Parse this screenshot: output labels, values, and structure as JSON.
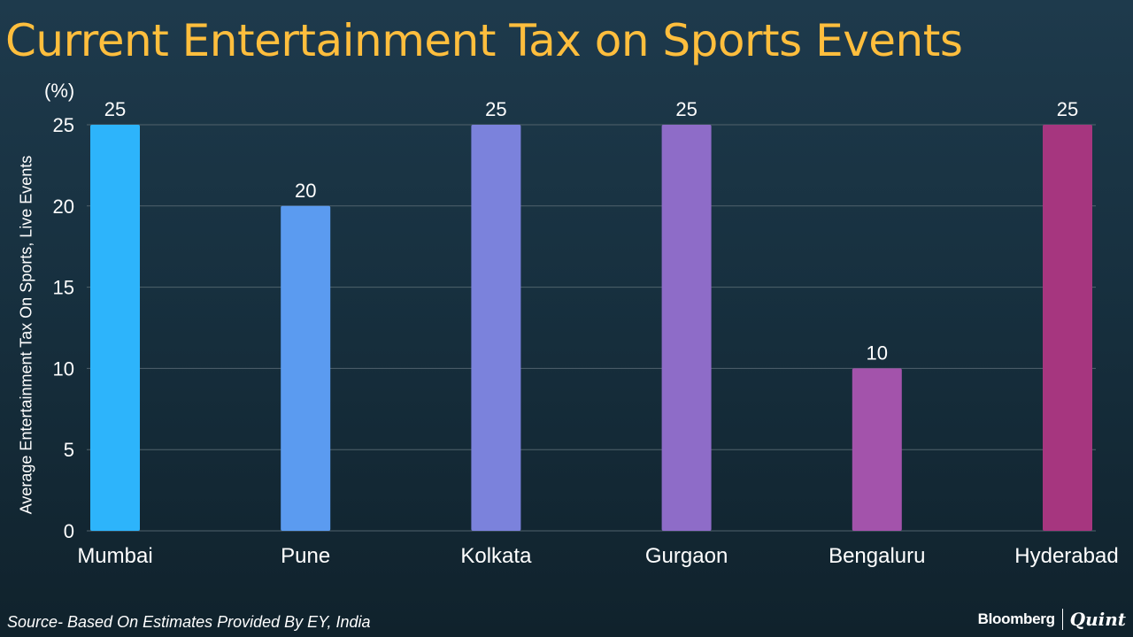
{
  "chart_data": {
    "type": "bar",
    "title": "Current Entertainment Tax on Sports Events",
    "unit_label": "(%)",
    "ylabel": "Average Entertainment Tax On Sports, Live Events",
    "xlabel": "",
    "categories": [
      "Mumbai",
      "Pune",
      "Kolkata",
      "Gurgaon",
      "Bengaluru",
      "Hyderabad"
    ],
    "values": [
      25,
      20,
      25,
      25,
      10,
      25
    ],
    "yticks": [
      0,
      5,
      10,
      15,
      20,
      25
    ],
    "ylim": [
      0,
      25
    ],
    "grid": true,
    "data_labels": true,
    "colors": [
      "#2db4fb",
      "#5b9bf0",
      "#7b82dc",
      "#8e6cc8",
      "#a353ab",
      "#a6367f"
    ]
  },
  "footer": {
    "source": "Source- Based On Estimates Provided By EY, India",
    "brand": "Bloomberg",
    "brand_partner": "Quint"
  },
  "theme": {
    "title_color": "#ffbe3d",
    "grid_color": "#50626c",
    "text_color": "#ffffff"
  }
}
